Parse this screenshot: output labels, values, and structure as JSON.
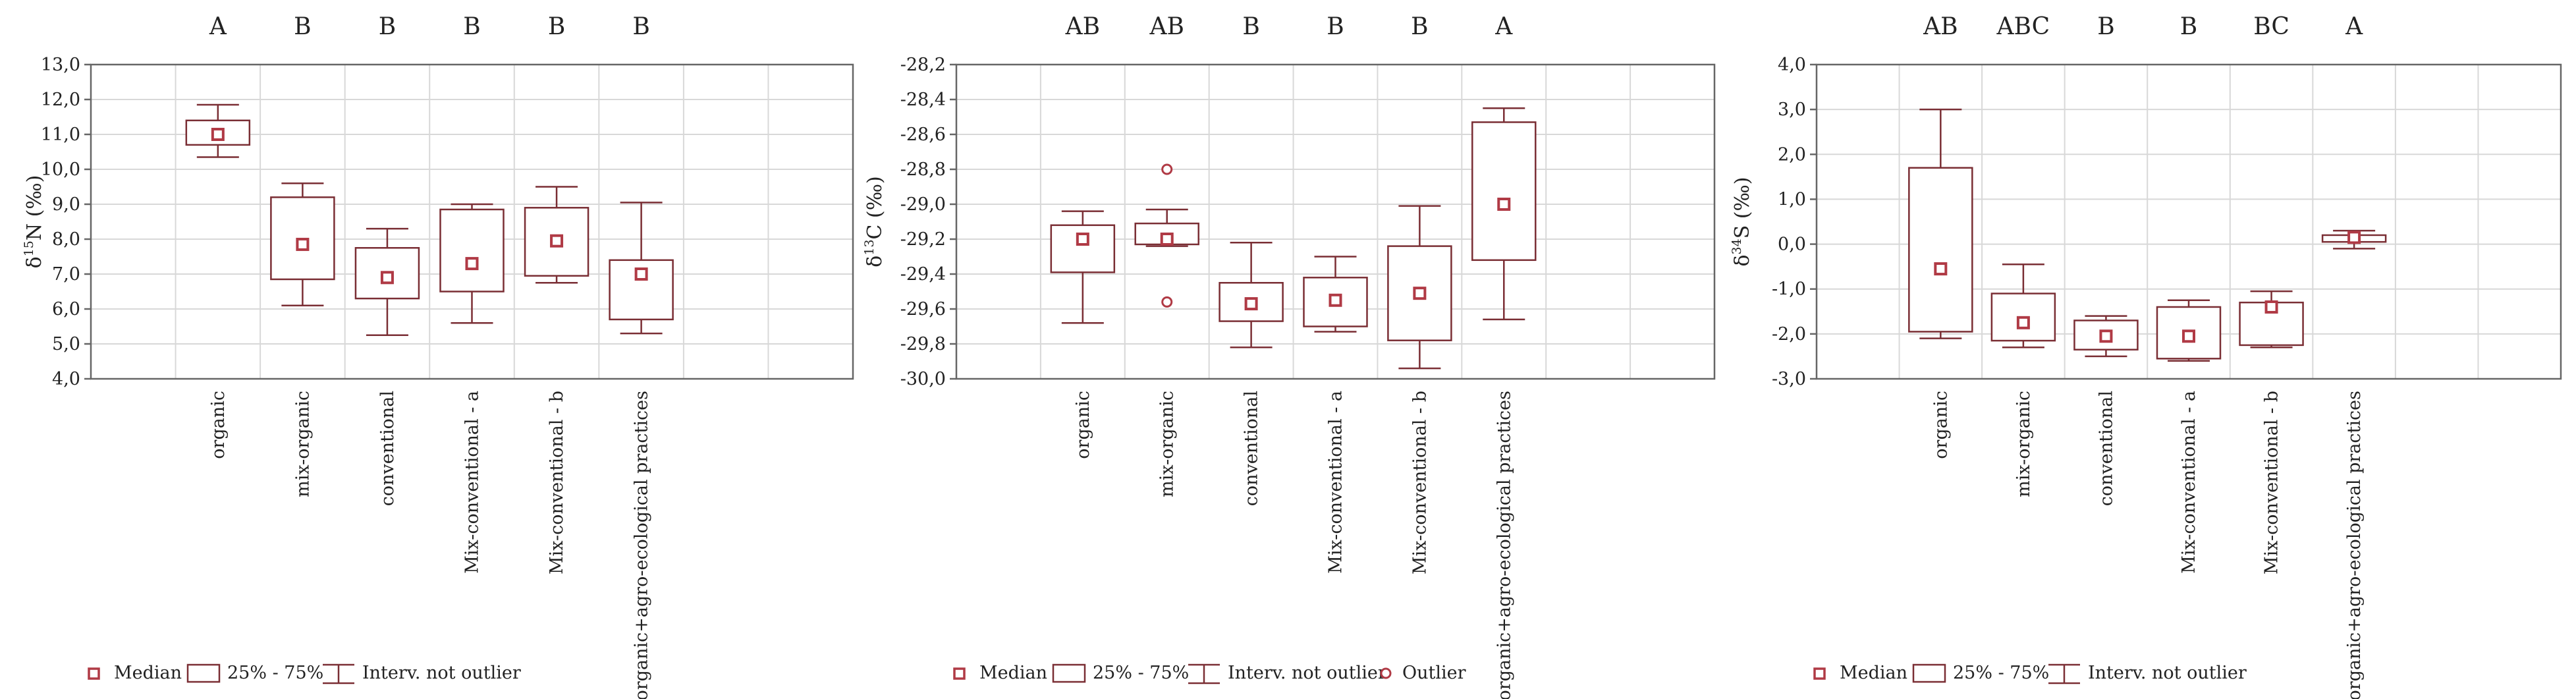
{
  "figure": {
    "panel_count": 3
  },
  "colors": {
    "box_stroke": "#7a2e34",
    "median_fill": "#b03a45",
    "grid": "#d8d8d8",
    "axis": "#666666",
    "text": "#222222",
    "background": "#ffffff"
  },
  "chart_data": [
    {
      "type": "box",
      "panel": "d15N",
      "ylabel_prefix": "δ",
      "ylabel_sup": "15",
      "ylabel_suffix": "N (‰)",
      "ylim": [
        4.0,
        13.0
      ],
      "yticks": [
        4.0,
        5.0,
        6.0,
        7.0,
        8.0,
        9.0,
        10.0,
        11.0,
        12.0,
        13.0
      ],
      "ytick_labels": [
        "4,0",
        "5,0",
        "6,0",
        "7,0",
        "8,0",
        "9,0",
        "10,0",
        "11,0",
        "12,0",
        "13,0"
      ],
      "categories": [
        "organic",
        "mix-organic",
        "conventional",
        "Mix-conventional - a",
        "Mix-conventional - b",
        "organic+agro-ecological practices"
      ],
      "letters": [
        "A",
        "B",
        "B",
        "B",
        "B",
        "B"
      ],
      "median": [
        11.0,
        7.85,
        6.9,
        7.3,
        7.95,
        7.0
      ],
      "q1": [
        10.7,
        6.85,
        6.3,
        6.5,
        6.95,
        5.7
      ],
      "q3": [
        11.4,
        9.2,
        7.75,
        8.85,
        8.9,
        7.4
      ],
      "whisker_low": [
        10.35,
        6.1,
        5.25,
        5.6,
        6.75,
        5.3
      ],
      "whisker_high": [
        11.85,
        9.6,
        8.3,
        9.0,
        9.5,
        9.05
      ],
      "outliers": [
        [],
        [],
        [],
        [],
        [],
        []
      ],
      "legend": [
        "Median",
        "25% - 75%",
        "Interv. not outlier"
      ]
    },
    {
      "type": "box",
      "panel": "d13C",
      "ylabel_prefix": "δ",
      "ylabel_sup": "13",
      "ylabel_suffix": "C (‰)",
      "ylim": [
        -30.0,
        -28.2
      ],
      "yticks": [
        -30.0,
        -29.8,
        -29.6,
        -29.4,
        -29.2,
        -29.0,
        -28.8,
        -28.6,
        -28.4,
        -28.2
      ],
      "ytick_labels": [
        "-30,0",
        "-29,8",
        "-29,6",
        "-29,4",
        "-29,2",
        "-29,0",
        "-28,8",
        "-28,6",
        "-28,4",
        "-28,2"
      ],
      "categories": [
        "organic",
        "mix-organic",
        "conventional",
        "Mix-conventional - a",
        "Mix-conventional - b",
        "organic+agro-ecological practices"
      ],
      "letters": [
        "AB",
        "AB",
        "B",
        "B",
        "B",
        "A"
      ],
      "median": [
        -29.2,
        -29.2,
        -29.57,
        -29.55,
        -29.51,
        -29.0
      ],
      "q1": [
        -29.39,
        -29.23,
        -29.67,
        -29.7,
        -29.78,
        -29.32
      ],
      "q3": [
        -29.12,
        -29.11,
        -29.45,
        -29.42,
        -29.24,
        -28.53
      ],
      "whisker_low": [
        -29.68,
        -29.24,
        -29.82,
        -29.73,
        -29.94,
        -29.66
      ],
      "whisker_high": [
        -29.04,
        -29.03,
        -29.22,
        -29.3,
        -29.01,
        -28.45
      ],
      "outliers": [
        [],
        [
          -28.8,
          -29.56
        ],
        [],
        [],
        [],
        []
      ],
      "legend": [
        "Median",
        "25% - 75%",
        "Interv. not outlier",
        "Outlier"
      ]
    },
    {
      "type": "box",
      "panel": "d34S",
      "ylabel_prefix": "δ",
      "ylabel_sup": "34",
      "ylabel_suffix": "S (‰)",
      "ylim": [
        -3.0,
        4.0
      ],
      "yticks": [
        -3.0,
        -2.0,
        -1.0,
        0.0,
        1.0,
        2.0,
        3.0,
        4.0
      ],
      "ytick_labels": [
        "-3,0",
        "-2,0",
        "-1,0",
        "0,0",
        "1,0",
        "2,0",
        "3,0",
        "4,0"
      ],
      "categories": [
        "organic",
        "mix-organic",
        "conventional",
        "Mix-conventional - a",
        "Mix-conventional - b",
        "organic+agro-ecological practices"
      ],
      "letters": [
        "AB",
        "ABC",
        "B",
        "B",
        "BC",
        "A"
      ],
      "median": [
        -0.55,
        -1.75,
        -2.05,
        -2.05,
        -1.4,
        0.15
      ],
      "q1": [
        -1.95,
        -2.15,
        -2.35,
        -2.55,
        -2.25,
        0.05
      ],
      "q3": [
        1.7,
        -1.1,
        -1.7,
        -1.4,
        -1.3,
        0.2
      ],
      "whisker_low": [
        -2.1,
        -2.3,
        -2.5,
        -2.6,
        -2.3,
        -0.1
      ],
      "whisker_high": [
        3.0,
        -0.45,
        -1.6,
        -1.25,
        -1.05,
        0.3
      ],
      "outliers": [
        [],
        [],
        [],
        [],
        [],
        []
      ],
      "legend": [
        "Median",
        "25% - 75%",
        "Interv. not outlier"
      ]
    }
  ]
}
